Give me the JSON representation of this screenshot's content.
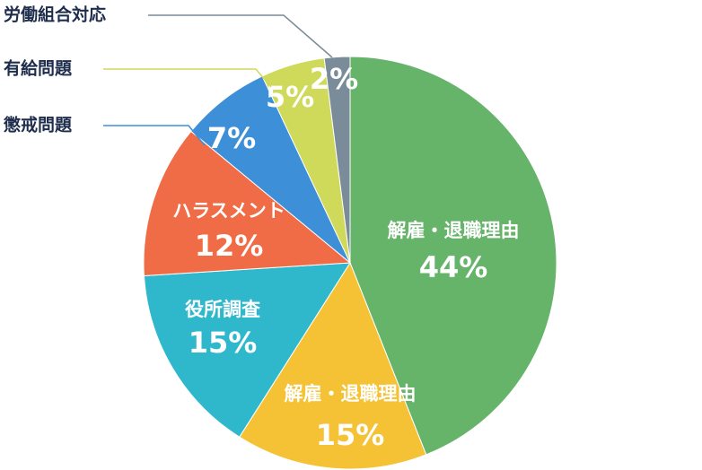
{
  "chart_data": {
    "type": "pie",
    "categories": [
      "解雇・退職理由",
      "解雇・退職理由",
      "役所調査",
      "ハラスメント",
      "懲戒問題",
      "有給問題",
      "労働組合対応"
    ],
    "values": [
      44,
      15,
      15,
      12,
      7,
      5,
      2
    ],
    "value_labels": [
      "44%",
      "15%",
      "15%",
      "12%",
      "7%",
      "5%",
      "2%"
    ],
    "colors": [
      "#66b36a",
      "#f4c234",
      "#2fb8cc",
      "#ef6c46",
      "#3d8fd8",
      "#cfd95a",
      "#7a8c99"
    ]
  }
}
